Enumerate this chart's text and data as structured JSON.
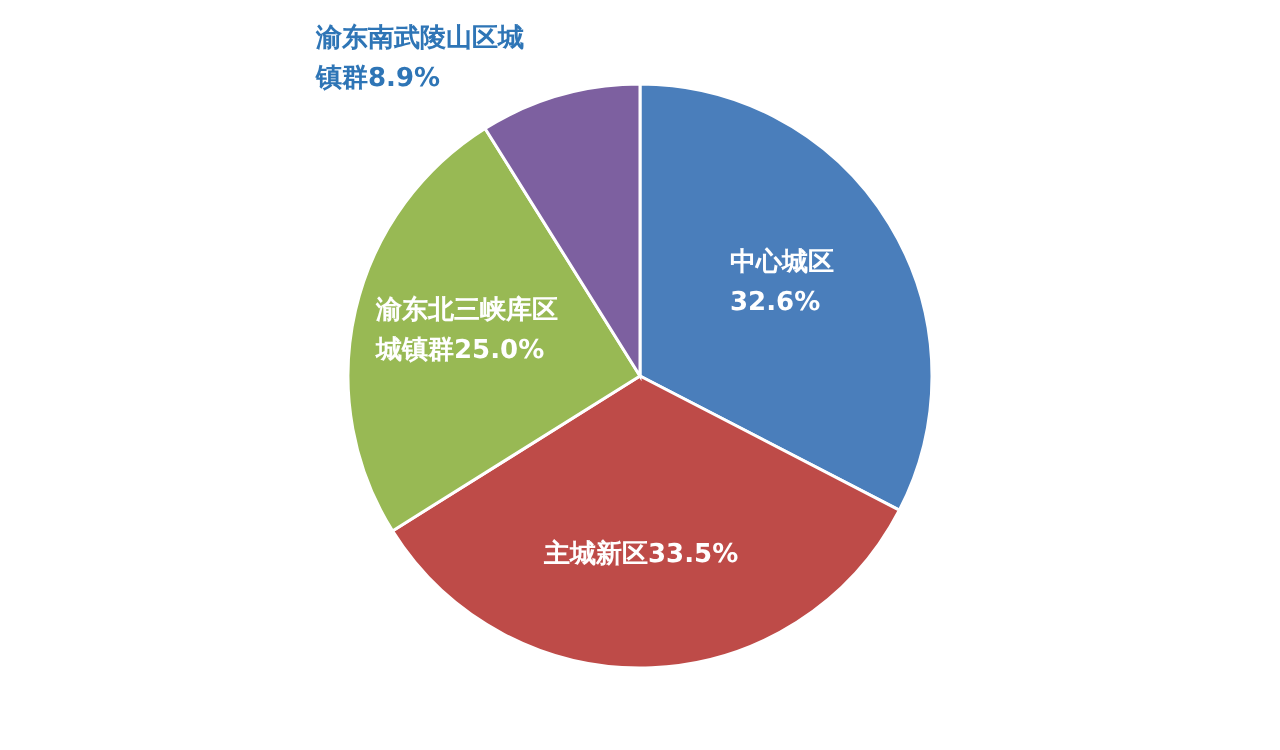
{
  "chart_data": {
    "type": "pie",
    "categories": [
      "中心城区",
      "主城新区",
      "渝东北三峡库区城镇群",
      "渝东南武陵山区城镇群"
    ],
    "values": [
      32.6,
      33.5,
      25.0,
      8.9
    ],
    "colors": [
      "#4a7ebb",
      "#be4b48",
      "#98b954",
      "#7d60a0"
    ],
    "value_labels": [
      "32.6%",
      "33.5%",
      "25.0%",
      "8.9%"
    ]
  }
}
